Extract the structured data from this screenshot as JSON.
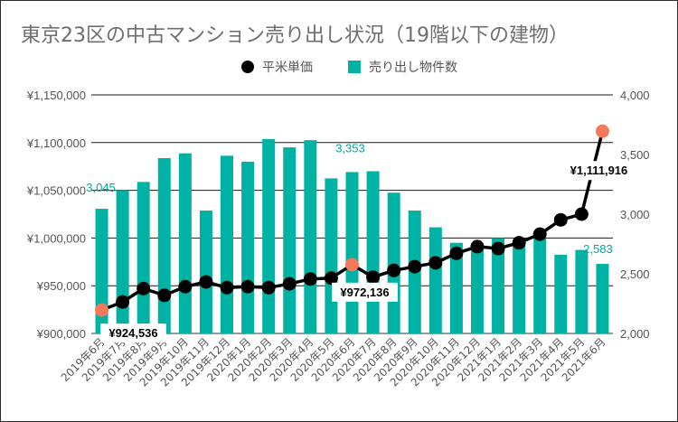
{
  "chart_data": {
    "type": "bar+line",
    "title": "東京23区の中古マンション売り出し状況（19階以下の建物）",
    "categories": [
      "2019年6月",
      "2019年7月",
      "2019年8月",
      "2019年9月",
      "2019年10月",
      "2019年11月",
      "2019年12月",
      "2020年1月",
      "2020年2月",
      "2020年3月",
      "2020年4月",
      "2020年5月",
      "2020年6月",
      "2020年7月",
      "2020年8月",
      "2020年9月",
      "2020年10月",
      "2020年11月",
      "2020年12月",
      "2021年1月",
      "2021年2月",
      "2021年3月",
      "2021年4月",
      "2021年5月",
      "2021年6月"
    ],
    "series": [
      {
        "name": "売り出し物件数",
        "kind": "bar",
        "axis": "right",
        "color": "#00b2a3",
        "values": [
          3045,
          3200,
          3270,
          3470,
          3510,
          3030,
          3490,
          3440,
          3630,
          3560,
          3620,
          3300,
          3353,
          3360,
          3180,
          3030,
          2890,
          2760,
          2700,
          2800,
          2760,
          2800,
          2660,
          2700,
          2583
        ]
      },
      {
        "name": "平米単価",
        "kind": "line",
        "axis": "left",
        "color": "#000000",
        "values": [
          924536,
          933000,
          947000,
          940000,
          949000,
          954000,
          948000,
          949000,
          948000,
          952000,
          957000,
          958000,
          972136,
          959000,
          966000,
          970000,
          974000,
          984000,
          991000,
          989000,
          995000,
          1004000,
          1019000,
          1025000,
          1111916
        ]
      }
    ],
    "left_axis": {
      "min": 900000,
      "max": 1150000,
      "ticks": [
        "¥900,000",
        "¥950,000",
        "¥1,000,000",
        "¥1,050,000",
        "¥1,100,000",
        "¥1,150,000"
      ]
    },
    "right_axis": {
      "min": 2000,
      "max": 4000,
      "ticks": [
        "2,000",
        "2,500",
        "3,000",
        "3,500",
        "4,000"
      ]
    },
    "legend": {
      "position": "top",
      "items": [
        "平米単価",
        "売り出し物件数"
      ]
    },
    "bar_labels": [
      {
        "index": 0,
        "text": "3,045"
      },
      {
        "index": 12,
        "text": "3,353"
      },
      {
        "index": 24,
        "text": "2,583"
      }
    ],
    "price_labels": [
      {
        "index": 0,
        "text": "¥924,536"
      },
      {
        "index": 12,
        "text": "¥972,136"
      },
      {
        "index": 24,
        "text": "¥1,111,916"
      }
    ],
    "highlight_points": [
      0,
      12,
      24
    ],
    "highlight_color": "#f4795b",
    "grid": true
  }
}
